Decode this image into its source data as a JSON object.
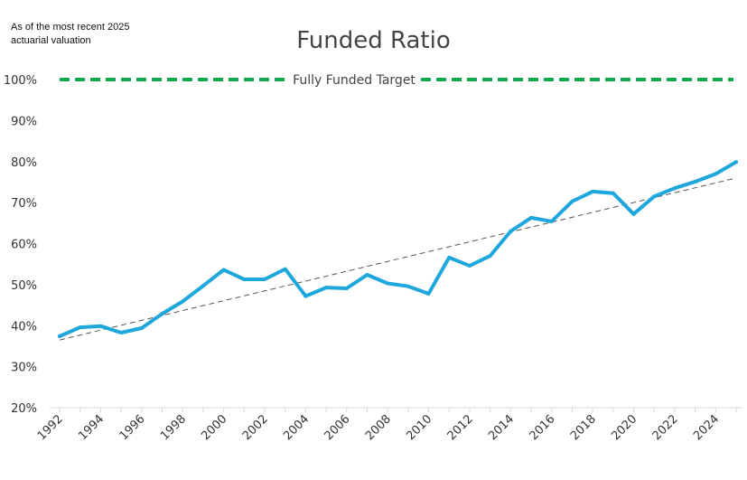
{
  "note": "As of the most recent 2025 actuarial valuation",
  "chart_data": {
    "type": "line",
    "title": "Funded Ratio",
    "xlabel": "",
    "ylabel": "",
    "ylim": [
      20,
      100
    ],
    "yticks": [
      "20%",
      "30%",
      "40%",
      "50%",
      "60%",
      "70%",
      "80%",
      "90%",
      "100%"
    ],
    "xticks": [
      "1992",
      "1994",
      "1996",
      "1998",
      "2000",
      "2002",
      "2004",
      "2006",
      "2008",
      "2010",
      "2012",
      "2014",
      "2016",
      "2018",
      "2020",
      "2022",
      "2024"
    ],
    "grid": false,
    "target": {
      "label": "Fully Funded Target",
      "value": 100,
      "color": "#13a84e"
    },
    "series": [
      {
        "color": "#1ea7dd",
        "x": [
          1992,
          1993,
          1994,
          1995,
          1996,
          1997,
          1998,
          1999,
          2000,
          2001,
          2002,
          2003,
          2004,
          2005,
          2006,
          2007,
          2008,
          2009,
          2010,
          2011,
          2012,
          2013,
          2014,
          2015,
          2016,
          2017,
          2018,
          2019,
          2020,
          2021,
          2022,
          2023,
          2024,
          2025
        ],
        "values": [
          37.4,
          39.6,
          39.9,
          38.3,
          39.4,
          42.9,
          45.9,
          49.7,
          53.6,
          51.3,
          51.3,
          53.8,
          47.2,
          49.3,
          49.1,
          52.4,
          50.3,
          49.6,
          47.8,
          56.6,
          54.6,
          57.0,
          63.0,
          66.3,
          65.4,
          70.3,
          72.7,
          72.3,
          67.2,
          71.5,
          73.5,
          75.1,
          77.0,
          79.9
        ]
      }
    ],
    "trendline": {
      "color": "#555555",
      "x": [
        1992,
        2025
      ],
      "values": [
        36.5,
        76.0
      ]
    }
  }
}
